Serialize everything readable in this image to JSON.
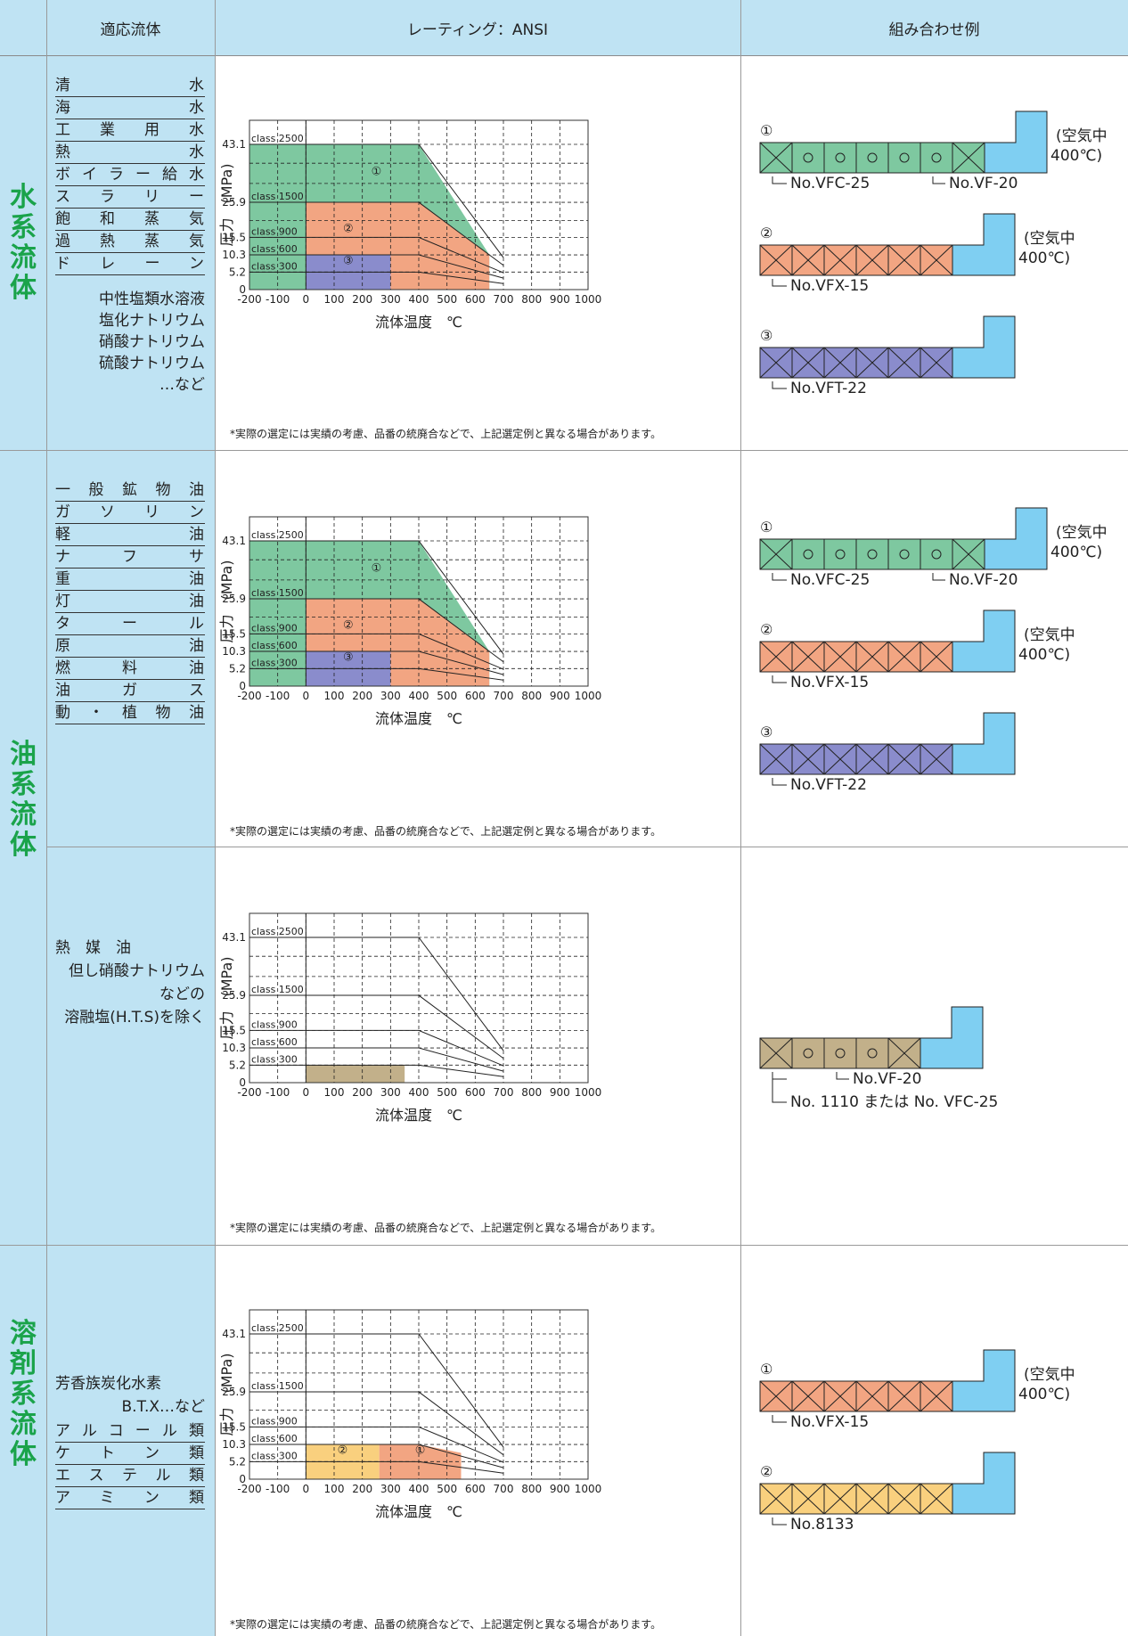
{
  "header": {
    "fluid": "適応流体",
    "rating": "レーティング：ANSI",
    "combo": "組み合わせ例"
  },
  "note": "*実際の選定には実績の考慮、品番の統廃合などで、上記選定例と異なる場合があります。",
  "chart_axes": {
    "xlabel": "流体温度　℃",
    "ylabel": "圧力　(MPa)",
    "x_ticks": [
      "-200",
      "-100",
      "0",
      "100",
      "200",
      "300",
      "400",
      "500",
      "600",
      "700",
      "800",
      "900",
      "1000"
    ],
    "y_ticks": [
      "43.1",
      "25.9",
      "15.5",
      "10.3",
      "5.2",
      "0"
    ],
    "classes": [
      "class 2500",
      "class 1500",
      "class 900",
      "class 600",
      "class 300"
    ]
  },
  "sections": [
    {
      "category": "水系流体",
      "fluids": [
        "清水",
        "海水",
        "工業用水",
        "熱水",
        "ボイラー給水",
        "スラリー",
        "飽和蒸気",
        "過熱蒸気",
        "ドレーン"
      ],
      "fluids_plain": [
        "中性塩類水溶液",
        "塩化ナトリウム",
        "硝酸ナトリウム",
        "硫酸ナトリウム",
        "…など"
      ],
      "combos": [
        {
          "num": "①",
          "pattern": "XOOOOOX",
          "color": "#7ec8a0",
          "labels": [
            "No.VFC-25",
            "No.VF-20"
          ],
          "note": [
            "(空気中",
            "400℃)"
          ]
        },
        {
          "num": "②",
          "pattern": "XXXXXX",
          "color": "#f2a582",
          "labels": [
            "No.VFX-15"
          ],
          "note": [
            "(空気中",
            "400℃)"
          ]
        },
        {
          "num": "③",
          "pattern": "XXXXXX",
          "color": "#8a8ccc",
          "labels": [
            "No.VFT-22"
          ],
          "note": []
        }
      ]
    },
    {
      "category": "油系流体",
      "fluids": [
        "一般鉱物油",
        "ガソリン",
        "軽油",
        "ナフサ",
        "重油",
        "灯油",
        "タール",
        "原油",
        "燃料油",
        "油ガス",
        "動・植物油"
      ],
      "combos": [
        {
          "num": "①",
          "pattern": "XOOOOOX",
          "color": "#7ec8a0",
          "labels": [
            "No.VFC-25",
            "No.VF-20"
          ],
          "note": [
            "(空気中",
            "400℃)"
          ]
        },
        {
          "num": "②",
          "pattern": "XXXXXX",
          "color": "#f2a582",
          "labels": [
            "No.VFX-15"
          ],
          "note": [
            "(空気中",
            "400℃)"
          ]
        },
        {
          "num": "③",
          "pattern": "XXXXXX",
          "color": "#8a8ccc",
          "labels": [
            "No.VFT-22"
          ],
          "note": []
        }
      ]
    },
    {
      "category": "",
      "fluid_text": [
        "熱　媒　油",
        "但し硝酸ナトリウム",
        "などの",
        "溶融塩(H.T.S)を除く"
      ],
      "combos": [
        {
          "num": "",
          "pattern": "XOOOX",
          "color": "#c2b08a",
          "labels": [
            "No.VF-20",
            "No. 1110 または No. VFC-25"
          ],
          "note": []
        }
      ]
    },
    {
      "category": "溶剤系流体",
      "fluids_top": [
        "芳香族炭化水素",
        "B.T.X…など"
      ],
      "fluids": [
        "アルコール類",
        "ケトン類",
        "エステル類",
        "アミン類"
      ],
      "combos": [
        {
          "num": "①",
          "pattern": "XXXXXX",
          "color": "#f2a582",
          "labels": [
            "No.VFX-15"
          ],
          "note": [
            "(空気中",
            "400℃)"
          ]
        },
        {
          "num": "②",
          "pattern": "XXXXXX",
          "color": "#f9d07e",
          "labels": [
            "No.8133"
          ],
          "note": []
        }
      ]
    }
  ],
  "chart_data": [
    {
      "type": "area",
      "title": "",
      "xlabel": "流体温度　℃",
      "ylabel": "圧力　(MPa)",
      "xlim": [
        -200,
        1000
      ],
      "y_ticks": [
        0,
        5.2,
        10.3,
        15.5,
        25.9,
        43.1
      ],
      "regions": [
        {
          "label": "①",
          "color": "#7ec8a0",
          "points": [
            [
              -200,
              0
            ],
            [
              -200,
              43.1
            ],
            [
              400,
              43.1
            ],
            [
              650,
              10.3
            ],
            [
              650,
              0
            ]
          ]
        },
        {
          "label": "②",
          "color": "#f2a582",
          "points": [
            [
              0,
              0
            ],
            [
              0,
              25.9
            ],
            [
              400,
              25.9
            ],
            [
              650,
              10.3
            ],
            [
              650,
              0
            ]
          ]
        },
        {
          "label": "③",
          "color": "#8a8ccc",
          "points": [
            [
              0,
              0
            ],
            [
              0,
              10.3
            ],
            [
              300,
              10.3
            ],
            [
              300,
              0
            ]
          ]
        }
      ]
    },
    {
      "type": "area",
      "title": "",
      "xlabel": "流体温度　℃",
      "ylabel": "圧力　(MPa)",
      "xlim": [
        -200,
        1000
      ],
      "y_ticks": [
        0,
        5.2,
        10.3,
        15.5,
        25.9,
        43.1
      ],
      "regions": [
        {
          "label": "①",
          "color": "#7ec8a0",
          "points": [
            [
              -200,
              0
            ],
            [
              -200,
              43.1
            ],
            [
              400,
              43.1
            ],
            [
              650,
              10.3
            ],
            [
              650,
              0
            ]
          ]
        },
        {
          "label": "②",
          "color": "#f2a582",
          "points": [
            [
              0,
              0
            ],
            [
              0,
              25.9
            ],
            [
              400,
              25.9
            ],
            [
              650,
              10.3
            ],
            [
              650,
              0
            ]
          ]
        },
        {
          "label": "③",
          "color": "#8a8ccc",
          "points": [
            [
              0,
              0
            ],
            [
              0,
              10.3
            ],
            [
              300,
              10.3
            ],
            [
              300,
              0
            ]
          ]
        }
      ]
    },
    {
      "type": "area",
      "title": "",
      "xlabel": "流体温度　℃",
      "ylabel": "圧力　(MPa)",
      "xlim": [
        -200,
        1000
      ],
      "y_ticks": [
        0,
        5.2,
        10.3,
        15.5,
        25.9,
        43.1
      ],
      "regions": [
        {
          "label": "",
          "color": "#c2b08a",
          "points": [
            [
              0,
              0
            ],
            [
              0,
              5.2
            ],
            [
              350,
              5.2
            ],
            [
              350,
              0
            ]
          ]
        }
      ]
    },
    {
      "type": "area",
      "title": "",
      "xlabel": "流体温度　℃",
      "ylabel": "圧力　(MPa)",
      "xlim": [
        -200,
        1000
      ],
      "y_ticks": [
        0,
        5.2,
        10.3,
        15.5,
        25.9,
        43.1
      ],
      "regions": [
        {
          "label": "②",
          "color": "#f9d07e",
          "points": [
            [
              0,
              0
            ],
            [
              0,
              10.3
            ],
            [
              260,
              10.3
            ],
            [
              260,
              0
            ]
          ]
        },
        {
          "label": "①",
          "color": "#f2a582",
          "points": [
            [
              260,
              0
            ],
            [
              260,
              10.3
            ],
            [
              400,
              10.3
            ],
            [
              550,
              7.8
            ],
            [
              550,
              0
            ]
          ]
        }
      ]
    }
  ]
}
